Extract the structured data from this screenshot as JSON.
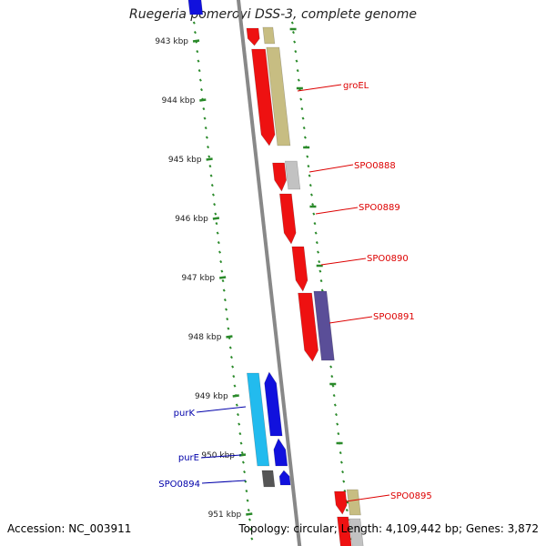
{
  "title": "Ruegeria pomeroyi DSS-3, complete genome",
  "footer": {
    "accession": "Accession: NC_003911",
    "summary": "Topology: circular; Length: 4,109,442 bp; Genes: 3,872"
  },
  "colors": {
    "background": "#ffffff",
    "backbone": "#888888",
    "ticks": "#2a8a2a",
    "forward_cds": "#ee1111",
    "reverse_cds": "#1111dd",
    "label_forward": "#dd0000",
    "label_reverse": "#0000aa",
    "feature_olive": "#c7bd82",
    "feature_gray": "#c2c2c2",
    "feature_purple": "#5a4e98",
    "feature_cyan": "#22bbee",
    "feature_dark": "#555555"
  },
  "scale": {
    "major_labels": [
      "943 kbp",
      "944 kbp",
      "945 kbp",
      "946 kbp",
      "947 kbp",
      "948 kbp",
      "949 kbp",
      "950 kbp",
      "951 kbp"
    ]
  },
  "gene_labels": [
    {
      "name": "groEL",
      "strand": "forward"
    },
    {
      "name": "SPO0888",
      "strand": "forward"
    },
    {
      "name": "SPO0889",
      "strand": "forward"
    },
    {
      "name": "SPO0890",
      "strand": "forward"
    },
    {
      "name": "SPO0891",
      "strand": "forward"
    },
    {
      "name": "purK",
      "strand": "reverse"
    },
    {
      "name": "purE",
      "strand": "reverse"
    },
    {
      "name": "SPO0894",
      "strand": "reverse"
    },
    {
      "name": "SPO0895",
      "strand": "forward"
    }
  ]
}
